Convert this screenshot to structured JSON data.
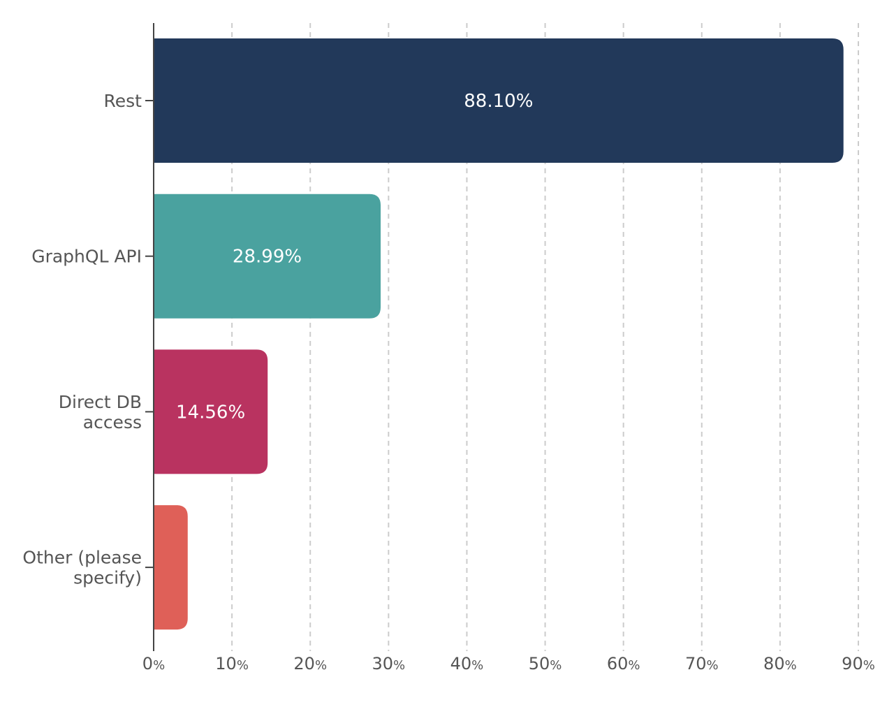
{
  "chart_data": {
    "type": "bar",
    "orientation": "horizontal",
    "categories": [
      [
        "Rest"
      ],
      [
        "GraphQL API"
      ],
      [
        "Direct DB",
        "access"
      ],
      [
        "Other (please",
        "specify)"
      ]
    ],
    "values": [
      88.1,
      28.99,
      14.56,
      4.35
    ],
    "data_labels": [
      "88.10%",
      "28.99%",
      "14.56%",
      ""
    ],
    "colors": [
      "#22395a",
      "#4aa29f",
      "#b93360",
      "#df6058"
    ],
    "xlim": [
      0,
      90
    ],
    "x_ticks": [
      0,
      10,
      20,
      30,
      40,
      50,
      60,
      70,
      80,
      90
    ],
    "x_tick_unit": "%",
    "grid": "vertical-dashed",
    "title": "",
    "xlabel": "",
    "ylabel": ""
  }
}
